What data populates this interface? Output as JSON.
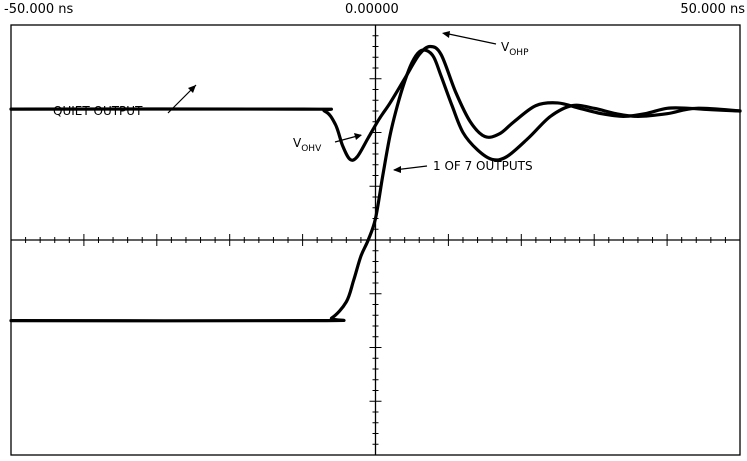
{
  "chart_data": {
    "type": "line",
    "x_ticks": {
      "left": "-50.000 ns",
      "center": "0.00000",
      "right": "50.000 ns"
    },
    "xlim": [
      -50,
      50
    ],
    "ylim": [
      -8,
      8
    ],
    "grid": "center crosshair with minor ticks",
    "series": [
      {
        "x": [
          -50,
          -10,
          -7,
          -5.5,
          -4.5,
          -3.5,
          -2.5,
          -1,
          0.5,
          2,
          4,
          6,
          7.5,
          9,
          11,
          13,
          15,
          17,
          19,
          22,
          25,
          28,
          31,
          34,
          37,
          40,
          43,
          46,
          50
        ],
        "y": [
          4.87,
          4.87,
          4.8,
          4.3,
          3.5,
          3.0,
          3.1,
          3.8,
          4.5,
          5.1,
          6.0,
          6.9,
          7.2,
          6.9,
          5.5,
          4.4,
          3.85,
          3.95,
          4.4,
          5.0,
          5.1,
          4.9,
          4.7,
          4.6,
          4.7,
          4.9,
          4.9,
          4.85,
          4.8
        ]
      },
      {
        "x": [
          -50,
          -8,
          -6,
          -4,
          -3,
          -2,
          -1,
          0,
          1,
          2,
          3,
          4,
          5,
          6,
          7,
          8,
          9,
          10.5,
          12,
          14,
          16,
          18,
          21,
          24,
          27,
          30,
          33,
          36,
          40,
          44,
          50
        ],
        "y": [
          -3.0,
          -3.0,
          -2.9,
          -2.3,
          -1.5,
          -0.6,
          0.0,
          0.8,
          2.4,
          3.9,
          5.0,
          5.9,
          6.6,
          7.0,
          7.05,
          6.8,
          6.1,
          5.0,
          4.0,
          3.35,
          3.0,
          3.1,
          3.8,
          4.6,
          5.0,
          4.9,
          4.7,
          4.6,
          4.7,
          4.9,
          4.8
        ]
      }
    ],
    "annotations": [
      {
        "text": "QUIET OUTPUT"
      },
      {
        "text": "V",
        "sub": "OHV"
      },
      {
        "text": "1 OF 7 OUTPUTS"
      },
      {
        "text": "V",
        "sub": "OHP"
      }
    ]
  }
}
